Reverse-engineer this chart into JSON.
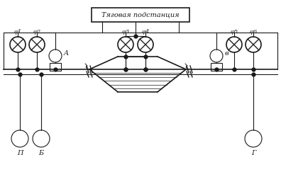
{
  "title": "Тяговая подстанция",
  "line_color": "#1a1a1a",
  "labels_phi": [
    "φ1",
    "φ2",
    "φ3",
    "φ4",
    "φ5",
    "φ6"
  ],
  "label_A": "A",
  "label_B": "в",
  "label_P": "П",
  "label_B2": "Б",
  "label_G": "Г",
  "figsize": [
    3.96,
    2.46
  ],
  "dpi": 100
}
